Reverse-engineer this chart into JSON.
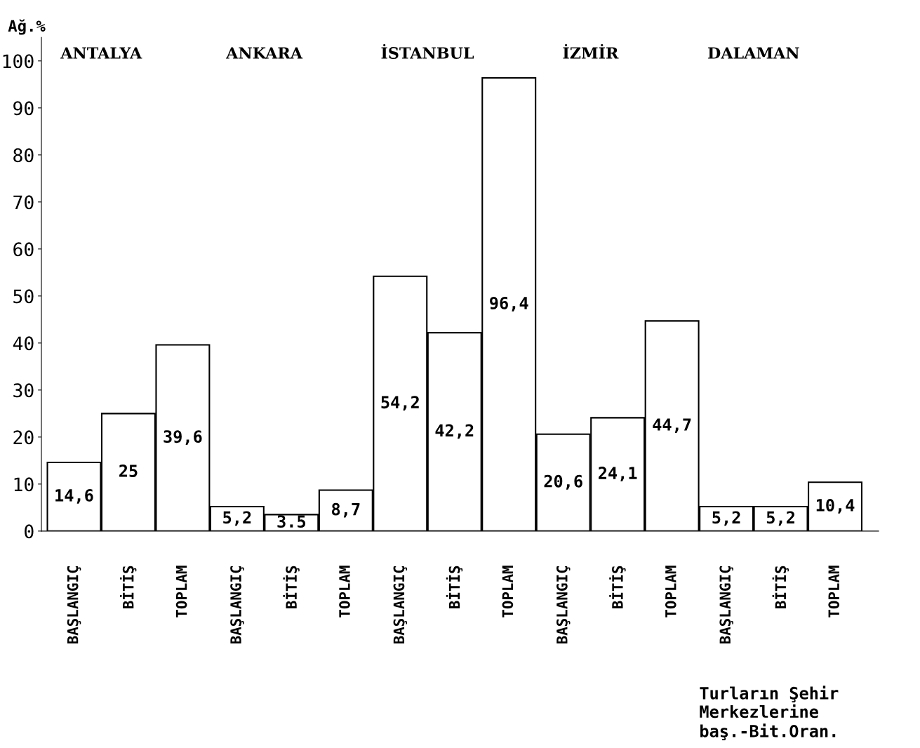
{
  "chart_data": {
    "type": "bar",
    "ylabel": "Ağ.%",
    "categories": [
      "BAŞLANGIÇ",
      "BİTİŞ",
      "TOPLAM",
      "BAŞLANGIÇ",
      "BİTİŞ",
      "TOPLAM",
      "BAŞLANGIÇ",
      "BİTİŞ",
      "TOPLAM",
      "BAŞLANGIÇ",
      "BİTİŞ",
      "TOPLAM",
      "BAŞLANGIÇ",
      "BİTİŞ",
      "TOPLAM"
    ],
    "values": [
      14.6,
      25,
      39.6,
      5.2,
      3.5,
      8.7,
      54.2,
      42.2,
      96.4,
      20.6,
      24.1,
      44.7,
      5.2,
      5.2,
      10.4
    ],
    "value_labels": [
      "14,6",
      "25",
      "39,6",
      "5,2",
      "3.5",
      "8,7",
      "54,2",
      "42,2",
      "96,4",
      "20,6",
      "24,1",
      "44,7",
      "5,2",
      "5,2",
      "10,4"
    ],
    "color": "#ffffff",
    "ylim": [
      0,
      105
    ],
    "yticks": [
      0,
      10,
      20,
      30,
      40,
      50,
      60,
      70,
      80,
      90,
      100
    ],
    "grid": false,
    "annotations": [
      "ANTALYA",
      "ANKARA",
      "İSTANBUL",
      "İZMİR",
      "DALAMAN",
      "Turların Şehir\nMerkezlerine\nbaş.-Bit.Oran."
    ]
  }
}
